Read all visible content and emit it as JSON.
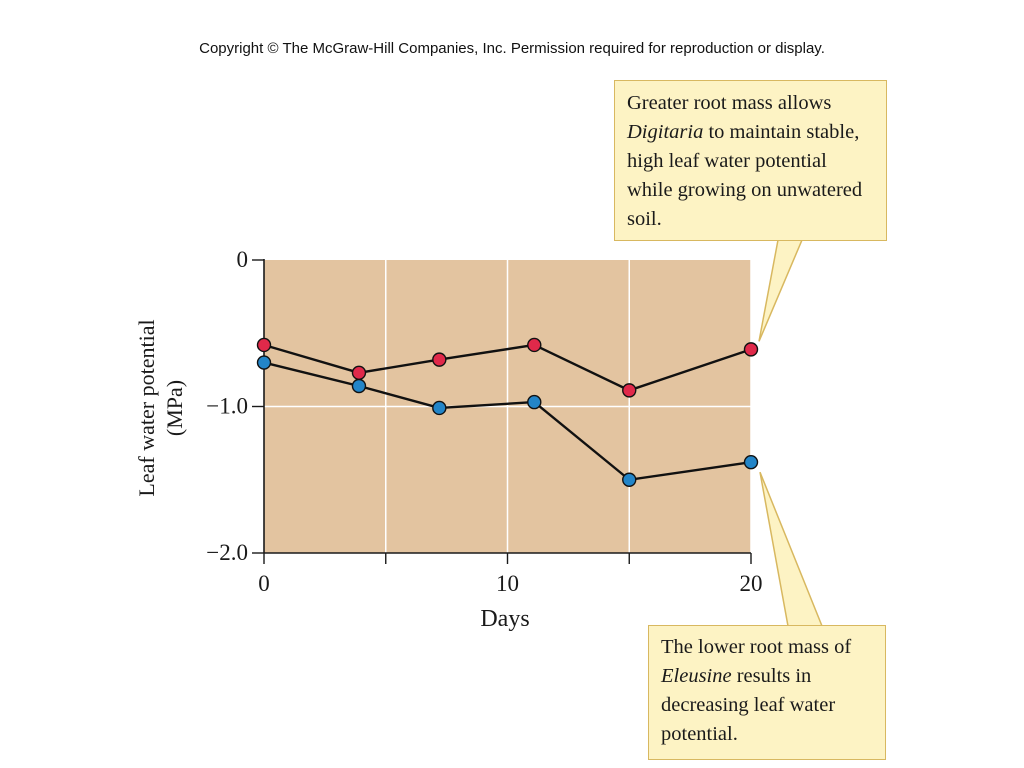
{
  "copyright": "Copyright © The McGraw-Hill Companies, Inc. Permission required for reproduction or display.",
  "callouts": {
    "top": {
      "pre": "Greater root mass allows ",
      "species": "Digitaria",
      "post": " to maintain stable, high leaf water potential while growing on unwatered soil."
    },
    "bottom": {
      "pre": "The lower root mass of ",
      "species": "Eleusine",
      "post": " results in decreasing leaf water potential."
    }
  },
  "colors": {
    "plot_background": "#e3c4a0",
    "grid": "#ffffff",
    "digitaria_marker": "#e0294a",
    "eleusine_marker": "#2385c8",
    "line": "#111111",
    "callout_fill": "#fdf3c4",
    "callout_border": "#d8b860"
  },
  "chart_data": {
    "type": "line",
    "xlabel": "Days",
    "ylabel": "Leaf water potential",
    "ylabel_unit": "(MPa)",
    "xlim": [
      0,
      20
    ],
    "ylim": [
      -2.0,
      0
    ],
    "xticks": [
      0,
      5,
      10,
      15,
      20
    ],
    "xtick_labels": [
      "0",
      "",
      "10",
      "",
      "20"
    ],
    "yticks": [
      0,
      -1.0,
      -2.0
    ],
    "ytick_labels": [
      "0",
      "−1.0",
      "−2.0"
    ],
    "grid": true,
    "series": [
      {
        "key": "digitaria",
        "x": [
          0,
          3.9,
          7.2,
          11.1,
          15.0,
          20.0
        ],
        "y": [
          -0.58,
          -0.77,
          -0.68,
          -0.58,
          -0.89,
          -0.61
        ]
      },
      {
        "key": "eleusine",
        "x": [
          0,
          3.9,
          7.2,
          11.1,
          15.0,
          20.0
        ],
        "y": [
          -0.7,
          -0.86,
          -1.01,
          -0.97,
          -1.5,
          -1.38
        ]
      }
    ]
  }
}
